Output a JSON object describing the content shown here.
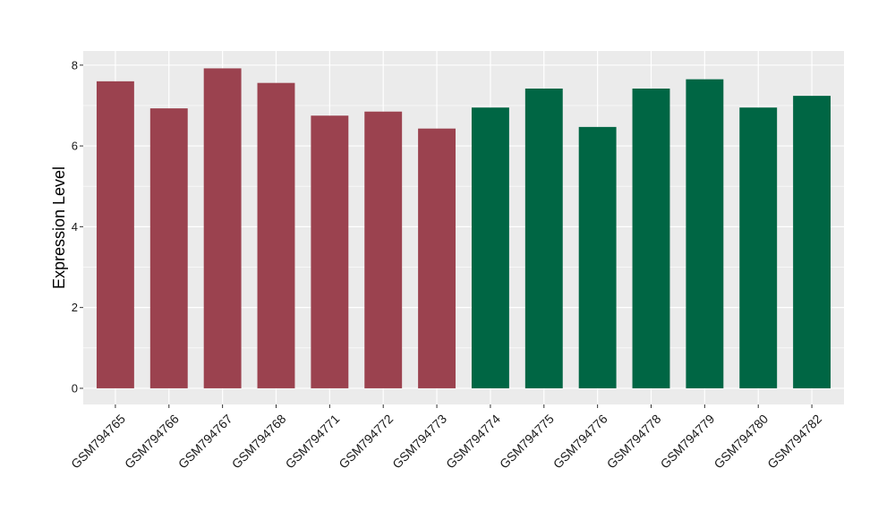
{
  "chart_data": {
    "type": "bar",
    "title": "",
    "xlabel": "",
    "ylabel": "Expression Level",
    "ylim": [
      -0.4,
      8.35
    ],
    "yticks": [
      0,
      2,
      4,
      6,
      8
    ],
    "grid": true,
    "categories": [
      "GSM794765",
      "GSM794766",
      "GSM794767",
      "GSM794768",
      "GSM794771",
      "GSM794772",
      "GSM794773",
      "GSM794774",
      "GSM794775",
      "GSM794776",
      "GSM794778",
      "GSM794779",
      "GSM794780",
      "GSM794782"
    ],
    "values": [
      7.6,
      6.93,
      7.92,
      7.56,
      6.75,
      6.85,
      6.43,
      6.95,
      7.42,
      6.47,
      7.42,
      7.65,
      6.95,
      7.24
    ],
    "group_colors": [
      "#9b424f",
      "#9b424f",
      "#9b424f",
      "#9b424f",
      "#9b424f",
      "#9b424f",
      "#9b424f",
      "#006644",
      "#006644",
      "#006644",
      "#006644",
      "#006644",
      "#006644",
      "#006644"
    ],
    "panel_background": "#ebebeb",
    "grid_color": "#ffffff"
  }
}
